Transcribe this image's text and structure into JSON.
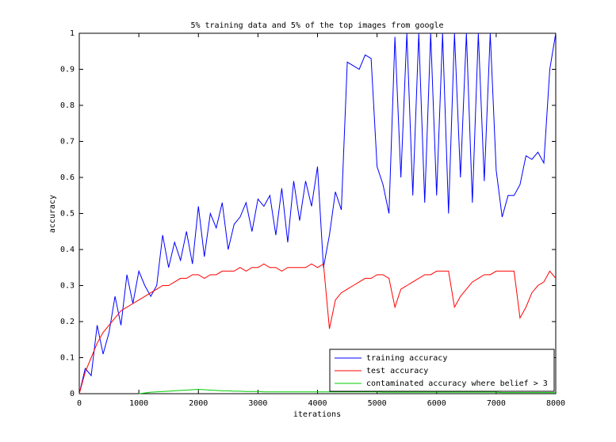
{
  "chart_data": {
    "type": "line",
    "title": "5% training data and 5% of the top images from google",
    "x_label": "iterations",
    "y_label": "accuracy",
    "x": [
      0,
      100,
      200,
      300,
      400,
      500,
      600,
      700,
      800,
      900,
      1000,
      1100,
      1200,
      1300,
      1400,
      1500,
      1600,
      1700,
      1800,
      1900,
      2000,
      2100,
      2200,
      2300,
      2400,
      2500,
      2600,
      2700,
      2800,
      2900,
      3000,
      3100,
      3200,
      3300,
      3400,
      3500,
      3600,
      3700,
      3800,
      3900,
      4000,
      4100,
      4200,
      4300,
      4400,
      4500,
      4600,
      4700,
      4800,
      4900,
      5000,
      5100,
      5200,
      5300,
      5400,
      5500,
      5600,
      5700,
      5800,
      5900,
      6000,
      6100,
      6200,
      6300,
      6400,
      6500,
      6600,
      6700,
      6800,
      6900,
      7000,
      7100,
      7200,
      7300,
      7400,
      7500,
      7600,
      7700,
      7800,
      7900,
      8000
    ],
    "series": [
      {
        "name": "training accuracy",
        "color": "#0000ff",
        "values": [
          0,
          0.07,
          0.05,
          0.19,
          0.11,
          0.17,
          0.27,
          0.19,
          0.33,
          0.25,
          0.34,
          0.3,
          0.27,
          0.3,
          0.44,
          0.35,
          0.42,
          0.37,
          0.45,
          0.36,
          0.52,
          0.38,
          0.5,
          0.46,
          0.53,
          0.4,
          0.47,
          0.49,
          0.53,
          0.45,
          0.54,
          0.52,
          0.55,
          0.44,
          0.57,
          0.42,
          0.59,
          0.48,
          0.59,
          0.52,
          0.63,
          0.35,
          0.44,
          0.56,
          0.51,
          0.92,
          0.91,
          0.9,
          0.94,
          0.93,
          0.63,
          0.58,
          0.5,
          0.99,
          0.6,
          1,
          0.55,
          1,
          0.53,
          1,
          0.55,
          1,
          0.5,
          1,
          0.6,
          1,
          0.53,
          1,
          0.59,
          1,
          0.62,
          0.49,
          0.55,
          0.55,
          0.58,
          0.66,
          0.65,
          0.67,
          0.64,
          0.9,
          1
        ]
      },
      {
        "name": "test accuracy",
        "color": "#ff0000",
        "values": [
          0,
          0.06,
          0.1,
          0.14,
          0.17,
          0.19,
          0.21,
          0.23,
          0.24,
          0.25,
          0.26,
          0.27,
          0.28,
          0.29,
          0.3,
          0.3,
          0.31,
          0.32,
          0.32,
          0.33,
          0.33,
          0.32,
          0.33,
          0.33,
          0.34,
          0.34,
          0.34,
          0.35,
          0.34,
          0.35,
          0.35,
          0.36,
          0.35,
          0.35,
          0.34,
          0.35,
          0.35,
          0.35,
          0.35,
          0.36,
          0.35,
          0.36,
          0.18,
          0.26,
          0.28,
          0.29,
          0.3,
          0.31,
          0.32,
          0.32,
          0.33,
          0.33,
          0.32,
          0.24,
          0.29,
          0.3,
          0.31,
          0.32,
          0.33,
          0.33,
          0.34,
          0.34,
          0.34,
          0.24,
          0.27,
          0.29,
          0.31,
          0.32,
          0.33,
          0.33,
          0.34,
          0.34,
          0.34,
          0.34,
          0.21,
          0.24,
          0.28,
          0.3,
          0.31,
          0.34,
          0.32
        ]
      },
      {
        "name": "contaminated accuracy where belief > 3",
        "color": "#00cc00",
        "values": [
          null,
          null,
          null,
          null,
          null,
          null,
          null,
          null,
          null,
          null,
          0,
          0.002,
          0.004,
          0.005,
          0.006,
          0.007,
          0.008,
          0.009,
          0.01,
          0.011,
          0.012,
          0.011,
          0.01,
          0.009,
          0.008,
          0.008,
          0.007,
          0.007,
          0.006,
          0.006,
          0.006,
          0.005,
          0.005,
          0.005,
          0.005,
          0.005,
          0.005,
          0.005,
          0.005,
          0.005,
          0.005,
          0.005,
          0.005,
          0.005,
          0.005,
          0.005,
          0.005,
          0.005,
          0.005,
          0.005,
          0.005,
          0.004,
          0.004,
          0.004,
          0.004,
          0.004,
          0.004,
          0.004,
          0.004,
          0.004,
          0.004,
          0.004,
          0.004,
          0.004,
          0.004,
          0.004,
          0.004,
          0.004,
          0.004,
          0.004,
          0.004,
          0.003,
          0.003,
          0.003,
          0.003,
          0.003,
          0.003,
          0.003,
          0.003,
          0.003,
          0.003
        ]
      }
    ],
    "xlim": [
      0,
      8000
    ],
    "xticks": [
      0,
      1000,
      2000,
      3000,
      4000,
      5000,
      6000,
      7000,
      8000
    ],
    "ylim": [
      0,
      1
    ],
    "yticks": [
      0,
      0.1,
      0.2,
      0.3,
      0.4,
      0.5,
      0.6,
      0.7,
      0.8,
      0.9,
      1
    ],
    "grid": false,
    "legend": "lower right"
  }
}
